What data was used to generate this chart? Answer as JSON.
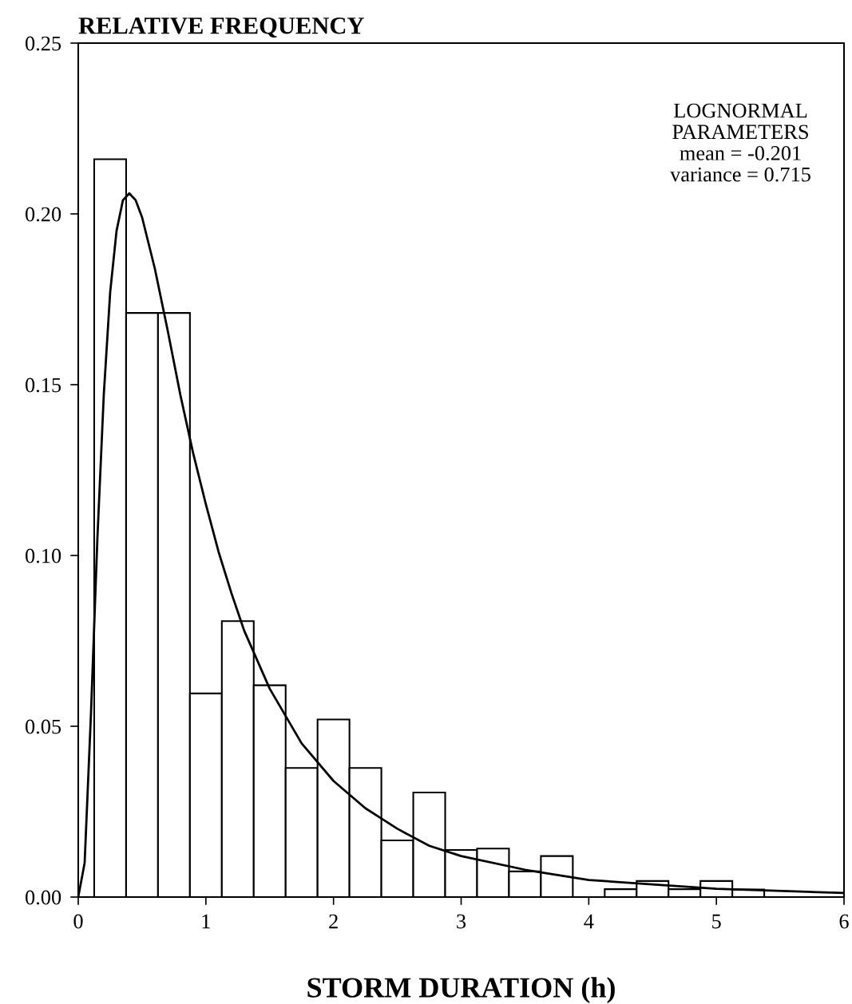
{
  "chart_data": {
    "type": "histogram",
    "ylabel": "RELATIVE FREQUENCY",
    "xlabel": "STORM DURATION (h)",
    "bins": [
      0.125,
      0.375,
      0.625,
      0.875,
      1.125,
      1.375,
      1.625,
      1.875,
      2.125,
      2.375,
      2.625,
      2.875,
      3.125,
      3.375,
      3.625,
      3.875,
      4.125,
      4.375,
      4.625,
      4.875,
      5.125,
      5.375
    ],
    "values": [
      0.216,
      0.171,
      0.171,
      0.0596,
      0.0808,
      0.062,
      0.0378,
      0.052,
      0.0378,
      0.0166,
      0.0306,
      0.0138,
      0.0142,
      0.0075,
      0.012,
      0,
      0.0023,
      0.0047,
      0.0023,
      0.0047,
      0.0022
    ],
    "color": "#ffffff",
    "series": [
      {
        "type": "line",
        "color": "#000000",
        "x": [
          0,
          0.05,
          0.1,
          0.15,
          0.2,
          0.25,
          0.3,
          0.35,
          0.4,
          0.45,
          0.5,
          0.6,
          0.7,
          0.8,
          0.9,
          1.0,
          1.1,
          1.2,
          1.3,
          1.5,
          1.75,
          2.0,
          2.25,
          2.5,
          2.75,
          3.0,
          3.5,
          4.0,
          5.0,
          6.0
        ],
        "values": [
          0,
          0.01,
          0.054,
          0.105,
          0.147,
          0.177,
          0.195,
          0.204,
          0.206,
          0.204,
          0.199,
          0.184,
          0.166,
          0.147,
          0.13,
          0.115,
          0.101,
          0.089,
          0.078,
          0.061,
          0.045,
          0.034,
          0.026,
          0.02,
          0.015,
          0.012,
          0.008,
          0.005,
          0.0024,
          0.0012
        ]
      }
    ],
    "xlim": [
      0,
      6
    ],
    "ylim": [
      0,
      0.25
    ],
    "xticks": [
      0,
      1,
      2,
      3,
      4,
      5,
      6
    ],
    "yticks": [
      {
        "value": 0,
        "label": "0.00"
      },
      {
        "value": 0.05,
        "label": "0.05"
      },
      {
        "value": 0.1,
        "label": "0.10"
      },
      {
        "value": 0.15,
        "label": "0.15"
      },
      {
        "value": 0.2,
        "label": "0.20"
      },
      {
        "value": 0.25,
        "label": "0.25"
      }
    ],
    "annotations": [
      "LOGNORMAL\nPARAMETERS\nmean = -0.201\nvariance = 0.715"
    ],
    "grid": false,
    "legend": false
  }
}
